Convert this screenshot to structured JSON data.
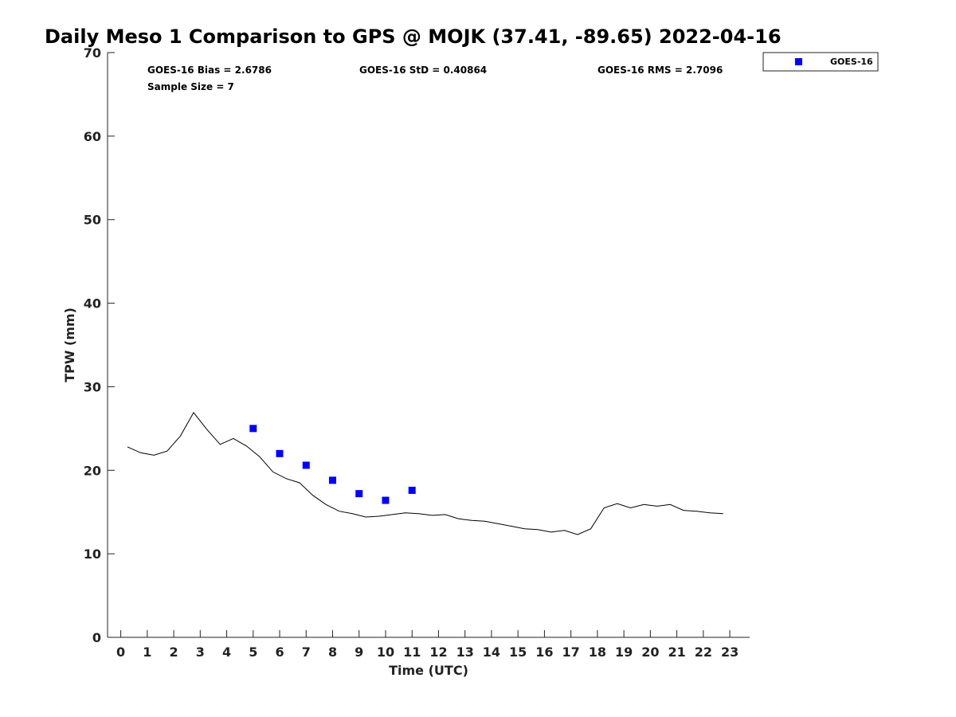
{
  "chart_data": {
    "type": "line",
    "title": "Daily Meso 1 Comparison to GPS @ MOJK (37.41, -89.65) 2022-04-16",
    "xlabel": "Time (UTC)",
    "ylabel": "TPW (mm)",
    "xlim": [
      -0.5,
      23.75
    ],
    "ylim": [
      0,
      70
    ],
    "x_ticks": [
      0,
      1,
      2,
      3,
      4,
      5,
      6,
      7,
      8,
      9,
      10,
      11,
      12,
      13,
      14,
      15,
      16,
      17,
      18,
      19,
      20,
      21,
      22,
      23
    ],
    "y_ticks": [
      0,
      10,
      20,
      30,
      40,
      50,
      60,
      70
    ],
    "grid": false,
    "legend_position": "top-right (outside plot)",
    "stats": {
      "bias": "GOES-16 Bias = 2.6786",
      "std": "GOES-16 StD = 0.40864",
      "rms": "GOES-16 RMS = 2.7096",
      "sample": "Sample Size = 7"
    },
    "series": [
      {
        "type": "line",
        "color": "#000000",
        "x": [
          0.25,
          0.75,
          1.25,
          1.75,
          2.25,
          2.75,
          3.25,
          3.75,
          4.25,
          4.75,
          5.25,
          5.75,
          6.25,
          6.75,
          7.25,
          7.75,
          8.25,
          8.75,
          9.25,
          9.75,
          10.25,
          10.75,
          11.25,
          11.75,
          12.25,
          12.75,
          13.25,
          13.75,
          14.25,
          14.75,
          15.25,
          15.75,
          16.25,
          16.75,
          17.25,
          17.75,
          18.25,
          18.75,
          19.25,
          19.75,
          20.25,
          20.75,
          21.25,
          21.75,
          22.25,
          22.75
        ],
        "values": [
          22.8,
          22.1,
          21.8,
          22.3,
          24.1,
          26.9,
          24.9,
          23.1,
          23.8,
          22.9,
          21.6,
          19.8,
          19.0,
          18.5,
          17.0,
          15.9,
          15.1,
          14.8,
          14.4,
          14.5,
          14.7,
          14.9,
          14.8,
          14.6,
          14.7,
          14.2,
          14.0,
          13.9,
          13.6,
          13.3,
          13.0,
          12.9,
          12.6,
          12.8,
          12.3,
          13.0,
          15.5,
          16.0,
          15.5,
          15.9,
          15.7,
          15.9,
          15.2,
          15.1,
          14.9,
          14.8
        ]
      },
      {
        "name": "GOES-16",
        "type": "scatter",
        "marker": "square",
        "color": "#0000ff",
        "x": [
          5,
          6,
          7,
          8,
          9,
          10,
          11
        ],
        "values": [
          25.0,
          22.0,
          20.6,
          18.8,
          17.2,
          16.4,
          17.6
        ]
      }
    ]
  }
}
